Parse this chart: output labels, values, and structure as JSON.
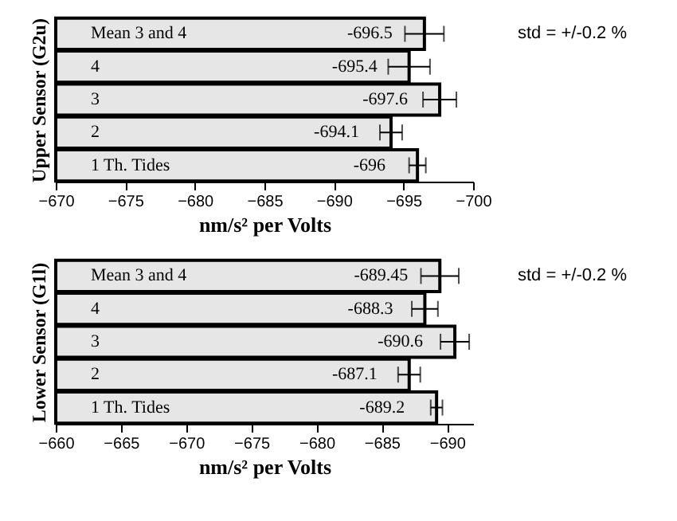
{
  "chart_data": [
    {
      "type": "bar",
      "orientation": "horizontal",
      "ylabel": "Upper Sensor (G2u)",
      "xlabel": "nm/s² per Volts",
      "categories": [
        "Mean 3 and 4",
        "4",
        "3",
        "2",
        "1 Th. Tides"
      ],
      "values": [
        -696.5,
        -695.4,
        -697.6,
        -694.1,
        -696
      ],
      "errors": [
        1.4,
        1.5,
        1.2,
        0.8,
        0.6
      ],
      "color": "#e6e6e6",
      "xlim": [
        -670,
        -700
      ],
      "xticks": [
        -670,
        -675,
        -680,
        -685,
        -690,
        -695,
        -700
      ],
      "data_labels": true,
      "annotations": [
        "std = +/-0.2 %"
      ]
    },
    {
      "type": "bar",
      "orientation": "horizontal",
      "ylabel": "Lower Sensor (G1l)",
      "xlabel": "nm/s² per Volts",
      "categories": [
        "Mean 3 and 4",
        "4",
        "3",
        "2",
        "1 Th. Tides"
      ],
      "values": [
        -689.45,
        -688.3,
        -690.6,
        -687.1,
        -689.2
      ],
      "errors": [
        1.45,
        1.0,
        1.1,
        0.85,
        0.45
      ],
      "color": "#e6e6e6",
      "xlim": [
        -660,
        -692
      ],
      "xticks": [
        -660,
        -665,
        -670,
        -675,
        -680,
        -685,
        -690
      ],
      "data_labels": true,
      "annotations": [
        "std = +/-0.2 %"
      ]
    }
  ]
}
